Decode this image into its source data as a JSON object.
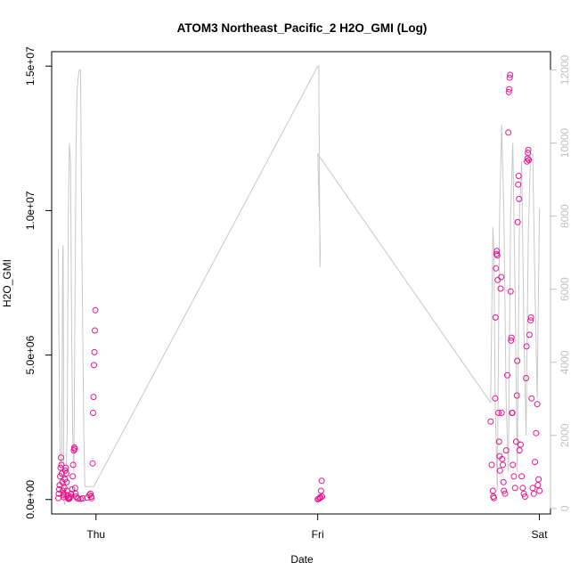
{
  "chart_data": {
    "type": "scatter",
    "title": "ATOM3 Northeast_Pacific_2 H2O_GMI (Log)",
    "xlabel": "Date",
    "ylabel": "H2O_GMI",
    "x_ticks": [
      "Thu",
      "Fri",
      "Sat"
    ],
    "x_tick_values": [
      0,
      1,
      2
    ],
    "xlim": [
      -0.2,
      2.05
    ],
    "y_left": {
      "lim": [
        -500000,
        15500000
      ],
      "ticks": [
        0,
        5000000,
        10000000,
        15000000
      ],
      "tick_labels": [
        "0.0e+00",
        "5.0e+06",
        "1.0e+07",
        "1.5e+07"
      ]
    },
    "y_right": {
      "lim": [
        -150,
        12500
      ],
      "ticks": [
        0,
        2000,
        4000,
        6000,
        8000,
        10000,
        12000
      ],
      "tick_labels": [
        "0",
        "2000",
        "4000",
        "6000",
        "8000",
        "10000",
        "12000"
      ]
    },
    "grid": false,
    "colors": {
      "points": "#e8168f",
      "line": "#c8c8c8",
      "right_axis": "#c0c0c0",
      "text": "#000000"
    },
    "series": [
      {
        "type": "points",
        "axis": "left",
        "points": [
          [
            -0.17,
            50000
          ],
          [
            -0.168,
            200000
          ],
          [
            -0.166,
            350000
          ],
          [
            -0.164,
            500000
          ],
          [
            -0.162,
            800000
          ],
          [
            -0.16,
            1100000
          ],
          [
            -0.158,
            1450000
          ],
          [
            -0.156,
            1200000
          ],
          [
            -0.154,
            900000
          ],
          [
            -0.152,
            600000
          ],
          [
            -0.15,
            300000
          ],
          [
            -0.148,
            150000
          ],
          [
            -0.146,
            80000
          ],
          [
            -0.144,
            200000
          ],
          [
            -0.142,
            400000
          ],
          [
            -0.14,
            700000
          ],
          [
            -0.138,
            1000000
          ],
          [
            -0.136,
            1100000
          ],
          [
            -0.134,
            900000
          ],
          [
            -0.132,
            600000
          ],
          [
            -0.13,
            300000
          ],
          [
            -0.128,
            150000
          ],
          [
            -0.126,
            50000
          ],
          [
            -0.124,
            20000
          ],
          [
            -0.12,
            30000
          ],
          [
            -0.118,
            60000
          ],
          [
            -0.116,
            100000
          ],
          [
            -0.112,
            200000
          ],
          [
            -0.108,
            350000
          ],
          [
            -0.105,
            800000
          ],
          [
            -0.103,
            1200000
          ],
          [
            -0.1,
            1700000
          ],
          [
            -0.098,
            1800000
          ],
          [
            -0.096,
            1750000
          ],
          [
            -0.094,
            400000
          ],
          [
            -0.092,
            200000
          ],
          [
            -0.09,
            100000
          ],
          [
            -0.085,
            50000
          ],
          [
            -0.08,
            30000
          ],
          [
            -0.07,
            20000
          ],
          [
            -0.06,
            40000
          ],
          [
            -0.04,
            60000
          ],
          [
            -0.03,
            150000
          ],
          [
            -0.025,
            200000
          ],
          [
            -0.022,
            100000
          ],
          [
            -0.02,
            50000
          ],
          [
            -0.015,
            1250000
          ],
          [
            -0.013,
            3000000
          ],
          [
            -0.011,
            3550000
          ],
          [
            -0.009,
            4650000
          ],
          [
            -0.007,
            5100000
          ],
          [
            -0.005,
            5850000
          ],
          [
            -0.003,
            6550000
          ],
          [
            1.0,
            10000
          ],
          [
            1.005,
            30000
          ],
          [
            1.01,
            50000
          ],
          [
            1.012,
            80000
          ],
          [
            1.015,
            300000
          ],
          [
            1.018,
            650000
          ],
          [
            1.02,
            100000
          ],
          [
            1.78,
            2700000
          ],
          [
            1.785,
            1200000
          ],
          [
            1.79,
            300000
          ],
          [
            1.792,
            100000
          ],
          [
            1.795,
            50000
          ],
          [
            1.8,
            3500000
          ],
          [
            1.802,
            6300000
          ],
          [
            1.804,
            8000000
          ],
          [
            1.806,
            8500000
          ],
          [
            1.808,
            8600000
          ],
          [
            1.81,
            8450000
          ],
          [
            1.812,
            7600000
          ],
          [
            1.815,
            3000000
          ],
          [
            1.818,
            2000000
          ],
          [
            1.82,
            1500000
          ],
          [
            1.822,
            1000000
          ],
          [
            1.825,
            7300000
          ],
          [
            1.828,
            7700000
          ],
          [
            1.83,
            3000000
          ],
          [
            1.832,
            1400000
          ],
          [
            1.835,
            1200000
          ],
          [
            1.838,
            600000
          ],
          [
            1.84,
            300000
          ],
          [
            1.845,
            200000
          ],
          [
            1.85,
            1700000
          ],
          [
            1.855,
            4300000
          ],
          [
            1.86,
            12700000
          ],
          [
            1.862,
            14100000
          ],
          [
            1.864,
            14200000
          ],
          [
            1.866,
            14600000
          ],
          [
            1.868,
            14700000
          ],
          [
            1.87,
            7200000
          ],
          [
            1.872,
            5500000
          ],
          [
            1.874,
            5600000
          ],
          [
            1.876,
            3000000
          ],
          [
            1.878,
            3000000
          ],
          [
            1.88,
            1200000
          ],
          [
            1.885,
            800000
          ],
          [
            1.89,
            400000
          ],
          [
            1.895,
            2000000
          ],
          [
            1.898,
            3600000
          ],
          [
            1.9,
            4800000
          ],
          [
            1.902,
            9600000
          ],
          [
            1.904,
            10900000
          ],
          [
            1.906,
            11200000
          ],
          [
            1.908,
            10400000
          ],
          [
            1.91,
            1700000
          ],
          [
            1.915,
            1900000
          ],
          [
            1.92,
            800000
          ],
          [
            1.925,
            400000
          ],
          [
            1.93,
            200000
          ],
          [
            1.935,
            100000
          ],
          [
            1.94,
            4200000
          ],
          [
            1.942,
            5300000
          ],
          [
            1.944,
            11700000
          ],
          [
            1.946,
            11800000
          ],
          [
            1.948,
            12000000
          ],
          [
            1.95,
            12100000
          ],
          [
            1.952,
            11750000
          ],
          [
            1.955,
            5700000
          ],
          [
            1.96,
            6200000
          ],
          [
            1.962,
            6300000
          ],
          [
            1.965,
            3500000
          ],
          [
            1.97,
            400000
          ],
          [
            1.975,
            200000
          ],
          [
            1.98,
            1300000
          ],
          [
            1.985,
            2300000
          ],
          [
            1.99,
            3300000
          ],
          [
            1.993,
            500000
          ],
          [
            1.996,
            700000
          ],
          [
            2.0,
            300000
          ]
        ]
      },
      {
        "type": "line",
        "axis": "right",
        "points": [
          [
            -0.17,
            7100
          ],
          [
            -0.165,
            3000
          ],
          [
            -0.16,
            500
          ],
          [
            -0.155,
            300
          ],
          [
            -0.15,
            7000
          ],
          [
            -0.148,
            7200
          ],
          [
            -0.145,
            200
          ],
          [
            -0.14,
            100
          ],
          [
            -0.13,
            2000
          ],
          [
            -0.125,
            8000
          ],
          [
            -0.12,
            10000
          ],
          [
            -0.115,
            9500
          ],
          [
            -0.11,
            5000
          ],
          [
            -0.105,
            2000
          ],
          [
            -0.1,
            1000
          ],
          [
            -0.09,
            10000
          ],
          [
            -0.085,
            11500
          ],
          [
            -0.08,
            11800
          ],
          [
            -0.075,
            12000
          ],
          [
            -0.07,
            12000
          ],
          [
            -0.065,
            8000
          ],
          [
            -0.06,
            5000
          ],
          [
            -0.055,
            2000
          ],
          [
            -0.05,
            600
          ],
          [
            -0.01,
            600
          ],
          [
            1.0,
            12100
          ],
          [
            1.005,
            12100
          ],
          [
            1.01,
            6600
          ],
          [
            1.012,
            7000
          ],
          [
            1.0,
            9700
          ],
          [
            1.78,
            2900
          ],
          [
            1.79,
            7700
          ],
          [
            1.795,
            7000
          ],
          [
            1.8,
            3000
          ],
          [
            1.81,
            500
          ],
          [
            1.82,
            8000
          ],
          [
            1.83,
            10500
          ],
          [
            1.84,
            8000
          ],
          [
            1.85,
            3000
          ],
          [
            1.86,
            1000
          ],
          [
            1.87,
            8000
          ],
          [
            1.88,
            10000
          ],
          [
            1.89,
            6000
          ],
          [
            1.9,
            1000
          ],
          [
            1.91,
            8000
          ],
          [
            1.92,
            9500
          ],
          [
            1.93,
            5000
          ],
          [
            1.94,
            2000
          ],
          [
            1.95,
            7500
          ],
          [
            1.96,
            9700
          ],
          [
            1.97,
            9700
          ],
          [
            1.98,
            6000
          ],
          [
            1.99,
            3000
          ],
          [
            2.0,
            8200
          ]
        ]
      }
    ]
  }
}
